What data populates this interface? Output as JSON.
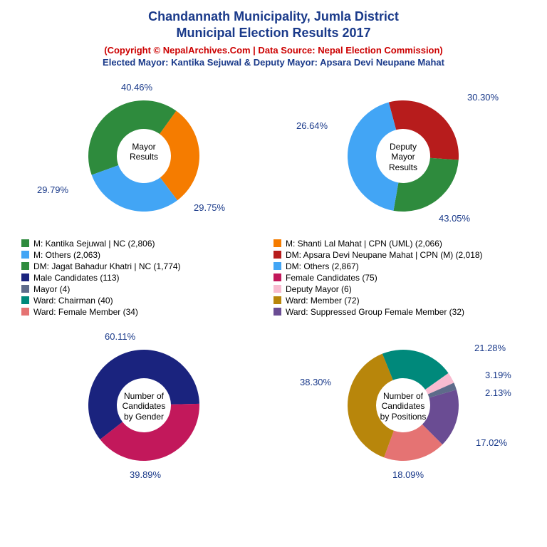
{
  "title_line1": "Chandannath Municipality, Jumla District",
  "title_line2": "Municipal Election Results 2017",
  "copyright": "(Copyright © NepalArchives.Com | Data Source: Nepal Election Commission)",
  "elected": "Elected Mayor: Kantika Sejuwal & Deputy Mayor: Apsara Devi Neupane Mahat",
  "colors": {
    "title": "#1a3a8a",
    "copyright": "#cc0000",
    "label": "#1a3a8a",
    "green": "#2e8b3d",
    "orange": "#f57c00",
    "lightblue": "#42a5f5",
    "brickred": "#b71c1c",
    "darkblue": "#1a237e",
    "crimson": "#c2185b",
    "ochre": "#b8860b",
    "teal": "#00897b",
    "pink": "#f8bbd0",
    "slate": "#5e6b8a",
    "salmon": "#e57373",
    "purple": "#6a4c93"
  },
  "mayor_chart": {
    "center_label": "Mayor\nResults",
    "slices": [
      {
        "label": "40.46%",
        "value": 40.46,
        "color": "#2e8b3d"
      },
      {
        "label": "29.79%",
        "value": 29.79,
        "color": "#f57c00"
      },
      {
        "label": "29.75%",
        "value": 29.75,
        "color": "#42a5f5"
      }
    ]
  },
  "deputy_chart": {
    "center_label": "Deputy\nMayor\nResults",
    "slices": [
      {
        "label": "30.30%",
        "value": 30.3,
        "color": "#b71c1c"
      },
      {
        "label": "26.64%",
        "value": 26.64,
        "color": "#2e8b3d"
      },
      {
        "label": "43.05%",
        "value": 43.05,
        "color": "#42a5f5"
      }
    ]
  },
  "gender_chart": {
    "center_label": "Number of\nCandidates\nby Gender",
    "slices": [
      {
        "label": "60.11%",
        "value": 60.11,
        "color": "#1a237e"
      },
      {
        "label": "39.89%",
        "value": 39.89,
        "color": "#c2185b"
      }
    ]
  },
  "position_chart": {
    "center_label": "Number of\nCandidates\nby Positions",
    "slices": [
      {
        "label": "21.28%",
        "value": 21.28,
        "color": "#00897b"
      },
      {
        "label": "3.19%",
        "value": 3.19,
        "color": "#f8bbd0"
      },
      {
        "label": "2.13%",
        "value": 2.13,
        "color": "#5e6b8a"
      },
      {
        "label": "17.02%",
        "value": 17.02,
        "color": "#6a4c93"
      },
      {
        "label": "18.09%",
        "value": 18.09,
        "color": "#e57373"
      },
      {
        "label": "38.30%",
        "value": 38.3,
        "color": "#b8860b"
      }
    ]
  },
  "legend": {
    "left": [
      {
        "color": "#2e8b3d",
        "text": "M: Kantika Sejuwal | NC (2,806)"
      },
      {
        "color": "#42a5f5",
        "text": "M: Others (2,063)"
      },
      {
        "color": "#2e8b3d",
        "text": "DM: Jagat Bahadur Khatri | NC (1,774)"
      },
      {
        "color": "#1a237e",
        "text": "Male Candidates (113)"
      },
      {
        "color": "#5e6b8a",
        "text": "Mayor (4)"
      },
      {
        "color": "#00897b",
        "text": "Ward: Chairman (40)"
      },
      {
        "color": "#e57373",
        "text": "Ward: Female Member (34)"
      }
    ],
    "right": [
      {
        "color": "#f57c00",
        "text": "M: Shanti Lal Mahat | CPN (UML) (2,066)"
      },
      {
        "color": "#b71c1c",
        "text": "DM: Apsara Devi Neupane Mahat | CPN (M) (2,018)"
      },
      {
        "color": "#42a5f5",
        "text": "DM: Others (2,867)"
      },
      {
        "color": "#c2185b",
        "text": "Female Candidates (75)"
      },
      {
        "color": "#f8bbd0",
        "text": "Deputy Mayor (6)"
      },
      {
        "color": "#b8860b",
        "text": "Ward: Member (72)"
      },
      {
        "color": "#6a4c93",
        "text": "Ward: Suppressed Group Female Member (32)"
      }
    ]
  },
  "donut_geom": {
    "outer_r": 78,
    "inner_r": 38
  }
}
